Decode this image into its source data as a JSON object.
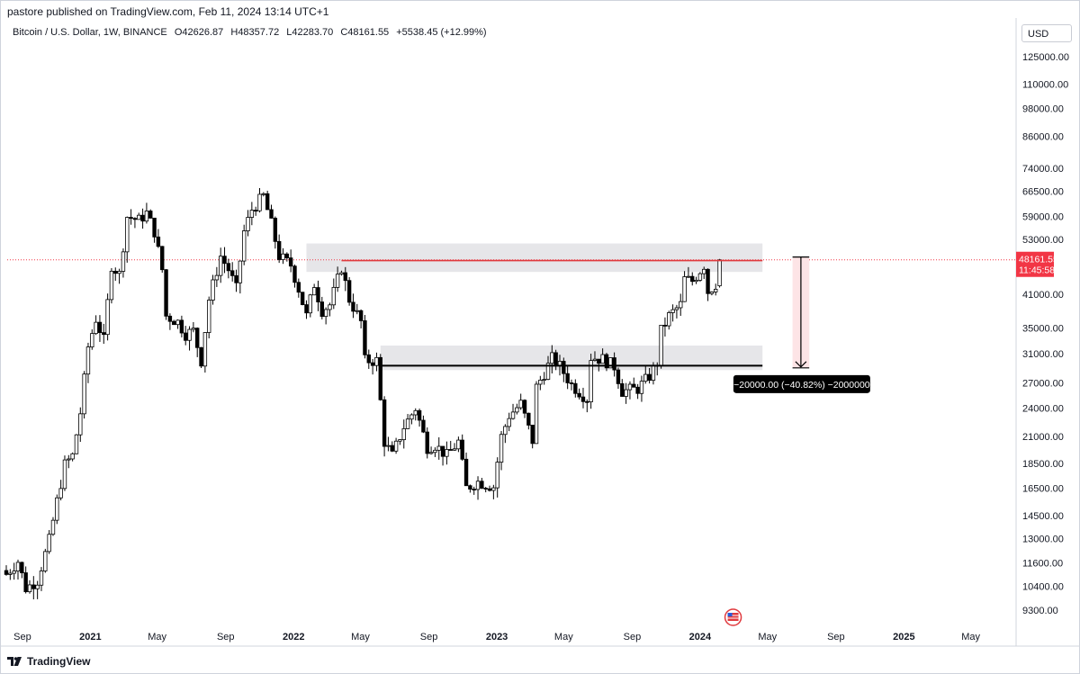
{
  "header": {
    "published_by": "pastore published on TradingView.com, Feb 11, 2024 13:14 UTC+1"
  },
  "symbol": {
    "name": "Bitcoin / U.S. Dollar, 1W, BINANCE",
    "open_label": "O",
    "open": "42626.87",
    "high_label": "H",
    "high": "48357.72",
    "low_label": "L",
    "low": "42283.70",
    "close_label": "C",
    "close": "48161.55",
    "change": "+5538.45 (+12.99%)"
  },
  "currency": "USD",
  "footer": {
    "brand": "TradingView"
  },
  "colors": {
    "up": "#ffffff",
    "down": "#000000",
    "wick": "#000000",
    "resistance_line": "#e03a3e",
    "support_line": "#000000",
    "zone": "#e6e6e9",
    "price_label": "#f23645",
    "measure_fill": "#fde4e6"
  },
  "chart_data": {
    "type": "candlestick",
    "title": "Bitcoin / U.S. Dollar, 1W, BINANCE",
    "scale": "log",
    "ylim": [
      8800,
      140000
    ],
    "y_ticks": [
      "125000.00",
      "110000.00",
      "98000.00",
      "86000.00",
      "74000.00",
      "66500.00",
      "59000.00",
      "53000.00",
      "41000.00",
      "35000.00",
      "31000.00",
      "27000.00",
      "24000.00",
      "21000.00",
      "18500.00",
      "16500.00",
      "14500.00",
      "13000.00",
      "11600.00",
      "10400.00",
      "9300.00"
    ],
    "x_ticks": [
      {
        "label": "Sep",
        "date": "2020-09-01",
        "bold": false
      },
      {
        "label": "2021",
        "date": "2021-01-01",
        "bold": true
      },
      {
        "label": "May",
        "date": "2021-05-01",
        "bold": false
      },
      {
        "label": "Sep",
        "date": "2021-09-01",
        "bold": false
      },
      {
        "label": "2022",
        "date": "2022-01-01",
        "bold": true
      },
      {
        "label": "May",
        "date": "2022-05-01",
        "bold": false
      },
      {
        "label": "Sep",
        "date": "2022-09-01",
        "bold": false
      },
      {
        "label": "2023",
        "date": "2023-01-01",
        "bold": true
      },
      {
        "label": "May",
        "date": "2023-05-01",
        "bold": false
      },
      {
        "label": "Sep",
        "date": "2023-09-01",
        "bold": false
      },
      {
        "label": "2024",
        "date": "2024-01-01",
        "bold": true
      },
      {
        "label": "May",
        "date": "2024-05-01",
        "bold": false
      },
      {
        "label": "Sep",
        "date": "2024-09-01",
        "bold": false
      },
      {
        "label": "2025",
        "date": "2025-01-01",
        "bold": true
      },
      {
        "label": "May",
        "date": "2025-05-01",
        "bold": false
      }
    ],
    "current_price": "48161.55",
    "countdown": "11:45:58",
    "resistance": {
      "value": 48000,
      "from": "2022-03-28",
      "to": "2024-04-22"
    },
    "support": {
      "value": 29300,
      "from": "2022-06-06",
      "to": "2024-04-22"
    },
    "zones": [
      {
        "from": "2022-01-24",
        "to": "2024-04-22",
        "top": 52000,
        "bottom": 45500
      },
      {
        "from": "2022-06-06",
        "to": "2024-04-22",
        "top": 32200,
        "bottom": 28700
      }
    ],
    "measure": {
      "from": "2024-06-15",
      "to": "2024-07-15",
      "top": 48800,
      "bottom": 29000,
      "label": "−20000.00 (−40.82%) −2000000"
    },
    "events_icon_date": "2024-02-05",
    "anchors": [
      [
        "2020-08-03",
        11000
      ],
      [
        "2020-08-24",
        11700
      ],
      [
        "2020-09-07",
        10300
      ],
      [
        "2020-09-28",
        10700
      ],
      [
        "2020-10-19",
        12900
      ],
      [
        "2020-11-02",
        15500
      ],
      [
        "2020-11-16",
        18400
      ],
      [
        "2020-11-30",
        19200
      ],
      [
        "2020-12-14",
        23500
      ],
      [
        "2020-12-28",
        32000
      ],
      [
        "2021-01-11",
        36500
      ],
      [
        "2021-01-25",
        33000
      ],
      [
        "2021-02-08",
        47000
      ],
      [
        "2021-02-22",
        45000
      ],
      [
        "2021-03-08",
        59000
      ],
      [
        "2021-03-29",
        58000
      ],
      [
        "2021-04-12",
        60000
      ],
      [
        "2021-04-26",
        55000
      ],
      [
        "2021-05-10",
        46000
      ],
      [
        "2021-05-17",
        37000
      ],
      [
        "2021-06-07",
        36000
      ],
      [
        "2021-06-21",
        34000
      ],
      [
        "2021-07-05",
        34500
      ],
      [
        "2021-07-19",
        30000
      ],
      [
        "2021-08-02",
        40000
      ],
      [
        "2021-08-23",
        49000
      ],
      [
        "2021-09-06",
        46000
      ],
      [
        "2021-09-20",
        42000
      ],
      [
        "2021-10-04",
        55000
      ],
      [
        "2021-10-18",
        61000
      ],
      [
        "2021-11-08",
        65000
      ],
      [
        "2021-11-22",
        57000
      ],
      [
        "2021-12-06",
        49000
      ],
      [
        "2021-12-27",
        47000
      ],
      [
        "2022-01-10",
        42000
      ],
      [
        "2022-01-24",
        37000
      ],
      [
        "2022-02-07",
        43000
      ],
      [
        "2022-02-21",
        38000
      ],
      [
        "2022-03-07",
        39000
      ],
      [
        "2022-03-28",
        46500
      ],
      [
        "2022-04-11",
        40000
      ],
      [
        "2022-05-02",
        36000
      ],
      [
        "2022-05-09",
        30000
      ],
      [
        "2022-05-30",
        30000
      ],
      [
        "2022-06-13",
        20500
      ],
      [
        "2022-06-27",
        19200
      ],
      [
        "2022-07-18",
        22000
      ],
      [
        "2022-08-08",
        24000
      ],
      [
        "2022-08-29",
        20000
      ],
      [
        "2022-09-12",
        20200
      ],
      [
        "2022-10-03",
        19200
      ],
      [
        "2022-10-24",
        20500
      ],
      [
        "2022-11-07",
        16500
      ],
      [
        "2022-11-28",
        17000
      ],
      [
        "2022-12-26",
        16600
      ],
      [
        "2023-01-09",
        21000
      ],
      [
        "2023-01-23",
        23200
      ],
      [
        "2023-02-13",
        24500
      ],
      [
        "2023-03-06",
        20600
      ],
      [
        "2023-03-13",
        26500
      ],
      [
        "2023-03-27",
        28300
      ],
      [
        "2023-04-10",
        30300
      ],
      [
        "2023-04-24",
        29200
      ],
      [
        "2023-05-15",
        26800
      ],
      [
        "2023-06-12",
        25100
      ],
      [
        "2023-06-19",
        30500
      ],
      [
        "2023-07-10",
        30200
      ],
      [
        "2023-07-31",
        29200
      ],
      [
        "2023-08-14",
        26000
      ],
      [
        "2023-09-11",
        26300
      ],
      [
        "2023-10-02",
        27900
      ],
      [
        "2023-10-16",
        29800
      ],
      [
        "2023-10-23",
        34500
      ],
      [
        "2023-11-06",
        37000
      ],
      [
        "2023-11-27",
        39000
      ],
      [
        "2023-12-04",
        44000
      ],
      [
        "2023-12-18",
        43600
      ],
      [
        "2024-01-08",
        47000
      ],
      [
        "2024-01-15",
        41500
      ],
      [
        "2024-01-29",
        43000
      ],
      [
        "2024-02-05",
        48160
      ]
    ]
  }
}
